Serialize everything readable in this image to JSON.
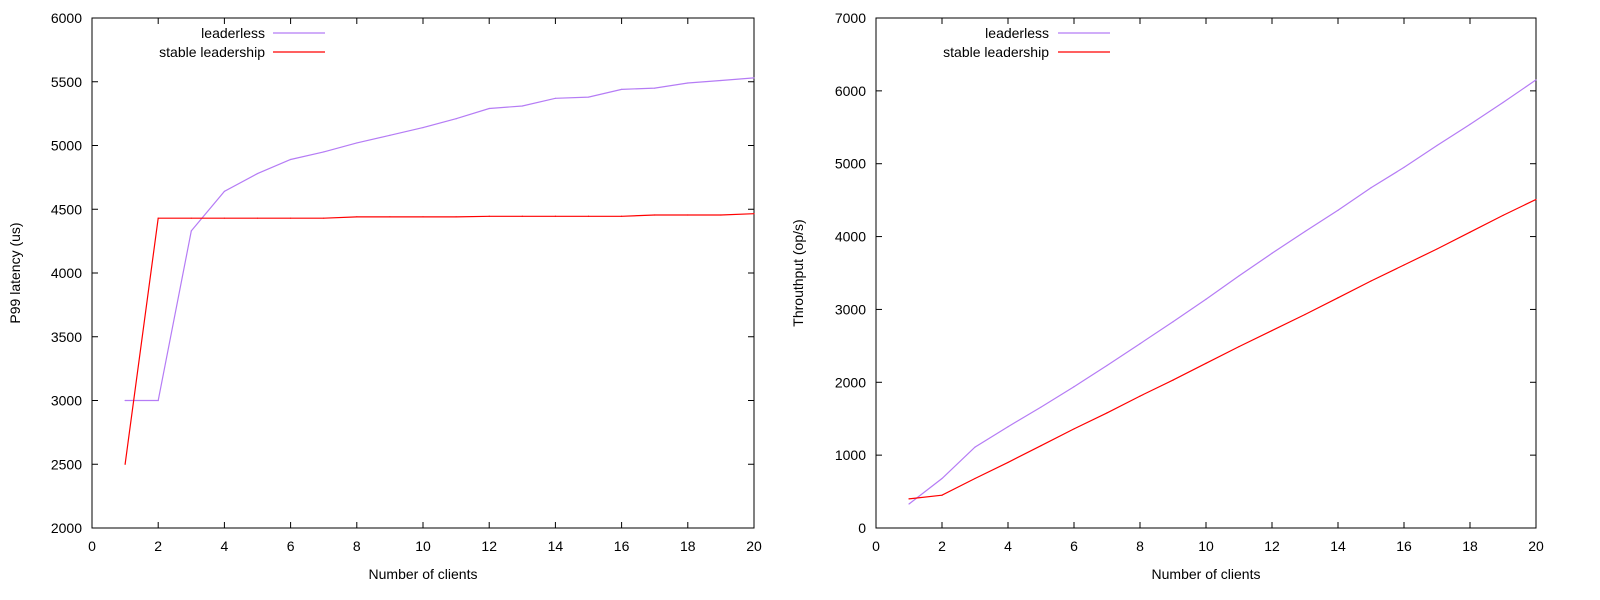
{
  "colors": {
    "leaderless": "#b57cf5",
    "stable": "#ff0000",
    "axis": "#000000"
  },
  "chart_data": [
    {
      "type": "line",
      "title": "",
      "xlabel": "Number of clients",
      "ylabel": "P99 latency (us)",
      "xlim": [
        0,
        20
      ],
      "ylim": [
        2000,
        6000
      ],
      "xticks": [
        0,
        2,
        4,
        6,
        8,
        10,
        12,
        14,
        16,
        18,
        20
      ],
      "yticks": [
        2000,
        2500,
        3000,
        3500,
        4000,
        4500,
        5000,
        5500,
        6000
      ],
      "grid": false,
      "legend_position": "top-left",
      "x": [
        1,
        2,
        3,
        4,
        5,
        6,
        7,
        8,
        9,
        10,
        11,
        12,
        13,
        14,
        15,
        16,
        17,
        18,
        19,
        20
      ],
      "series": [
        {
          "name": "leaderless",
          "color_key": "leaderless",
          "values": [
            3000,
            3000,
            4330,
            4640,
            4780,
            4890,
            4950,
            5020,
            5080,
            5140,
            5210,
            5290,
            5310,
            5370,
            5380,
            5440,
            5450,
            5490,
            5510,
            5530
          ]
        },
        {
          "name": "stable leadership",
          "color_key": "stable",
          "values": [
            2500,
            4430,
            4430,
            4430,
            4430,
            4430,
            4430,
            4440,
            4440,
            4440,
            4440,
            4445,
            4445,
            4445,
            4445,
            4445,
            4455,
            4455,
            4455,
            4465
          ]
        }
      ]
    },
    {
      "type": "line",
      "title": "",
      "xlabel": "Number of clients",
      "ylabel": "Throuthput (op/s)",
      "xlim": [
        0,
        20
      ],
      "ylim": [
        0,
        7000
      ],
      "xticks": [
        0,
        2,
        4,
        6,
        8,
        10,
        12,
        14,
        16,
        18,
        20
      ],
      "yticks": [
        0,
        1000,
        2000,
        3000,
        4000,
        5000,
        6000,
        7000
      ],
      "grid": false,
      "legend_position": "top-left",
      "x": [
        1,
        2,
        3,
        4,
        5,
        6,
        7,
        8,
        9,
        10,
        11,
        12,
        13,
        14,
        15,
        16,
        17,
        18,
        19,
        20
      ],
      "series": [
        {
          "name": "leaderless",
          "color_key": "leaderless",
          "values": [
            330,
            680,
            1110,
            1390,
            1660,
            1940,
            2230,
            2530,
            2830,
            3140,
            3460,
            3770,
            4070,
            4360,
            4670,
            4950,
            5250,
            5540,
            5840,
            6150
          ]
        },
        {
          "name": "stable leadership",
          "color_key": "stable",
          "values": [
            400,
            450,
            680,
            900,
            1130,
            1360,
            1580,
            1810,
            2030,
            2260,
            2490,
            2710,
            2930,
            3160,
            3390,
            3610,
            3830,
            4060,
            4290,
            4510
          ]
        }
      ]
    }
  ]
}
